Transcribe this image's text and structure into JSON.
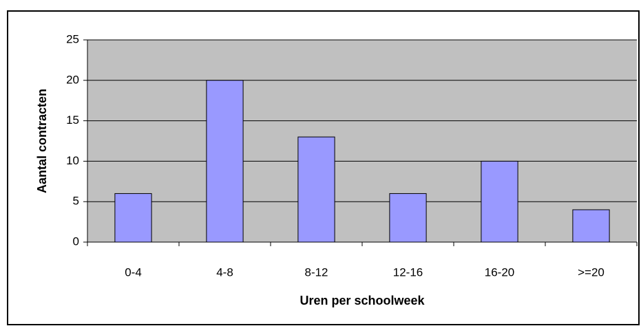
{
  "chart_data": {
    "type": "bar",
    "categories": [
      "0-4",
      "4-8",
      "8-12",
      "12-16",
      "16-20",
      ">=20"
    ],
    "values": [
      6,
      20,
      13,
      6,
      10,
      4
    ],
    "color": "#9999ff",
    "xlabel": "Uren per schoolweek",
    "ylabel": "Aantal contracten",
    "ylim": [
      0,
      25
    ],
    "yticks": [
      0,
      5,
      10,
      15,
      20,
      25
    ],
    "grid": true
  }
}
